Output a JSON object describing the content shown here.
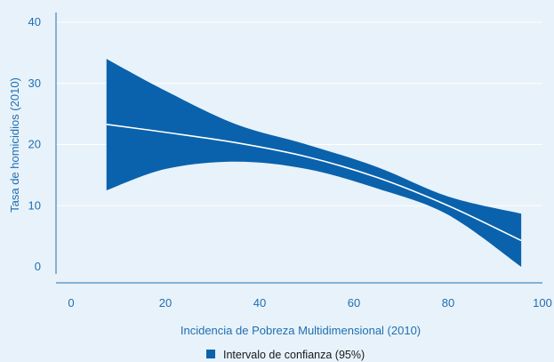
{
  "chart_data": {
    "type": "area",
    "title": "",
    "xlabel": "Incidencia de Pobreza Multidimensional (2010)",
    "ylabel": "Tasa de homicidios (2010)",
    "xlim": [
      0,
      100
    ],
    "ylim": [
      0,
      40
    ],
    "x_ticks": [
      0,
      20,
      40,
      60,
      80,
      100
    ],
    "y_ticks": [
      0,
      10,
      20,
      30,
      40
    ],
    "grid": "horizontal",
    "legend_position": "bottom-center",
    "series": [
      {
        "name": "Intervalo de confianza (95%)",
        "kind": "band",
        "x": [
          7.5,
          20,
          35,
          50,
          65,
          80,
          95.5
        ],
        "lower": [
          12.5,
          16.0,
          17.2,
          16.0,
          12.8,
          8.5,
          0.0
        ],
        "upper": [
          34.0,
          28.8,
          23.3,
          20.0,
          16.3,
          11.5,
          8.7
        ]
      },
      {
        "kind": "line",
        "x": [
          7.5,
          20,
          35,
          50,
          65,
          80,
          95.5
        ],
        "y": [
          23.3,
          22.0,
          20.3,
          18.0,
          14.6,
          10.0,
          4.3
        ]
      }
    ],
    "colors": {
      "background": "#e8f2fa",
      "band": "#0a62ac",
      "line": "#ffffff",
      "grid": "#ffffff",
      "axis": "#1f6fb2",
      "text": "#1f6fb2"
    }
  }
}
